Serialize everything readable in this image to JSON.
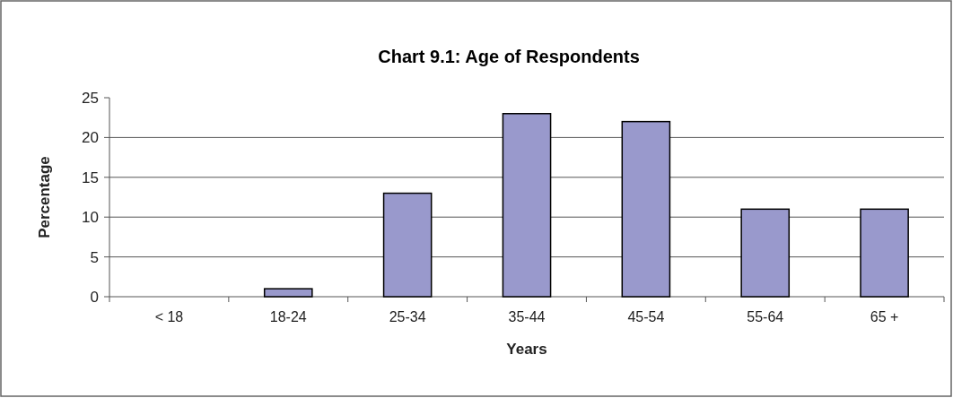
{
  "chart_data": {
    "type": "bar",
    "title": "Chart 9.1: Age of Respondents",
    "xlabel": "Years",
    "ylabel": "Percentage",
    "categories": [
      "< 18",
      "18-24",
      "25-34",
      "35-44",
      "45-54",
      "55-64",
      "65 +"
    ],
    "series": [
      {
        "color": "#9999cc",
        "values": [
          0,
          1,
          13,
          23,
          22,
          11,
          11
        ]
      }
    ],
    "ylim": [
      0,
      25
    ],
    "yticks": [
      0,
      5,
      10,
      15,
      20,
      25
    ],
    "grid": "y"
  }
}
